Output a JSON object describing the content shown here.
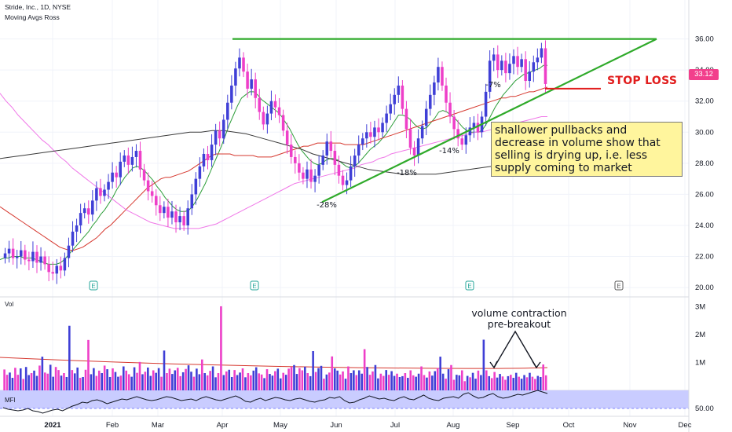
{
  "header": {
    "symbol_line": "Stride, Inc., 1D, NYSE",
    "indicator_line": "Moving Avgs Ross"
  },
  "chart_data": [
    {
      "type": "candlestick",
      "panel": "price",
      "ylim": [
        19.5,
        37.8
      ],
      "y_ticks": [
        "36.00",
        "34.00",
        "32.00",
        "30.00",
        "28.00",
        "26.00",
        "24.00",
        "22.00",
        "20.00"
      ],
      "x_ticks": [
        "2021",
        "Feb",
        "Mar",
        "Apr",
        "May",
        "Jun",
        "Jul",
        "Aug",
        "Sep",
        "Oct",
        "Nov",
        "Dec"
      ],
      "last_price": "33.12",
      "colors": {
        "up": "#3f3fd6",
        "down": "#ee3fc8"
      },
      "closes": [
        22.2,
        22.5,
        21.9,
        22.0,
        22.4,
        21.8,
        21.7,
        22.3,
        21.6,
        22.0,
        21.5,
        21.0,
        20.9,
        21.4,
        21.1,
        21.9,
        22.7,
        23.6,
        24.0,
        24.8,
        25.1,
        24.7,
        25.6,
        26.4,
        25.9,
        26.3,
        26.8,
        27.4,
        27.1,
        28.1,
        28.5,
        27.9,
        28.4,
        28.8,
        27.6,
        26.9,
        26.2,
        25.9,
        25.3,
        24.8,
        25.2,
        24.5,
        24.9,
        24.2,
        24.6,
        24.0,
        25.1,
        26.0,
        27.0,
        27.8,
        28.6,
        28.2,
        29.2,
        30.1,
        29.6,
        30.8,
        31.9,
        33.0,
        34.1,
        34.8,
        33.9,
        32.8,
        33.4,
        32.2,
        31.3,
        30.5,
        31.2,
        32.0,
        31.6,
        31.1,
        30.1,
        29.2,
        28.4,
        28.0,
        27.4,
        27.0,
        27.6,
        26.8,
        27.2,
        27.9,
        28.5,
        29.4,
        28.8,
        27.9,
        27.2,
        26.6,
        26.9,
        27.8,
        28.5,
        29.2,
        29.6,
        30.0,
        29.7,
        30.3,
        30.0,
        30.6,
        31.2,
        31.8,
        32.4,
        33.0,
        31.5,
        30.2,
        29.0,
        28.5,
        29.6,
        30.4,
        31.5,
        32.4,
        33.2,
        34.2,
        33.0,
        31.9,
        31.0,
        30.2,
        29.6,
        29.2,
        29.8,
        30.3,
        30.6,
        30.0,
        31.0,
        32.6,
        34.6,
        35.0,
        34.0,
        34.6,
        33.8,
        34.4,
        34.9,
        34.2,
        34.7,
        33.3,
        33.9,
        34.5,
        34.8,
        35.4,
        33.1
      ],
      "series": [
        {
          "name": "",
          "color": "#2e9e3a",
          "values": [
            21.8,
            21.9,
            21.9,
            22.0,
            22.0,
            22.0,
            21.9,
            21.9,
            21.9,
            21.8,
            21.7,
            21.6,
            21.5,
            21.5,
            21.5,
            21.6,
            21.8,
            22.1,
            22.4,
            22.7,
            23.0,
            23.3,
            23.6,
            24.0,
            24.3,
            24.7,
            25.0,
            25.4,
            25.8,
            26.3,
            26.7,
            27.1,
            27.4,
            27.7,
            27.8,
            27.7,
            27.5,
            27.2,
            26.9,
            26.5,
            26.2,
            25.8,
            25.5,
            25.2,
            25.0,
            24.9,
            24.9,
            25.0,
            25.3,
            25.7,
            26.2,
            26.7,
            27.3,
            27.9,
            28.5,
            29.1,
            29.8,
            30.5,
            31.1,
            31.7,
            32.2,
            32.4,
            32.6,
            32.6,
            32.4,
            32.1,
            31.9,
            31.7,
            31.5,
            31.3,
            31.0,
            30.6,
            30.2,
            29.7,
            29.2,
            28.8,
            28.5,
            28.2,
            28.0,
            27.9,
            28.0,
            28.2,
            28.3,
            28.3,
            28.2,
            28.0,
            27.8,
            27.7,
            27.8,
            28.0,
            28.3,
            28.6,
            28.9,
            29.1,
            29.3,
            29.6,
            29.9,
            30.3,
            30.7,
            31.1,
            31.1,
            31.0,
            30.8,
            30.5,
            30.3,
            30.2,
            30.3,
            30.6,
            30.9,
            31.3,
            31.4,
            31.3,
            31.1,
            30.9,
            30.6,
            30.3,
            30.1,
            30.0,
            30.0,
            30.0,
            30.2,
            30.6,
            31.1,
            31.6,
            32.0,
            32.4,
            32.7,
            33.0,
            33.3,
            33.5,
            33.7,
            33.8,
            33.9,
            34.0,
            34.1,
            34.3,
            34.3
          ]
        },
        {
          "name": "",
          "color": "#d6382f",
          "values": [
            25.2,
            25.0,
            24.8,
            24.6,
            24.4,
            24.2,
            24.0,
            23.8,
            23.6,
            23.4,
            23.2,
            23.0,
            22.8,
            22.6,
            22.5,
            22.4,
            22.4,
            22.5,
            22.6,
            22.8,
            23.0,
            23.2,
            23.5,
            23.8,
            24.0,
            24.3,
            24.6,
            24.9,
            25.2,
            25.5,
            25.8,
            26.1,
            26.4,
            26.6,
            26.8,
            27.0,
            27.1,
            27.1,
            27.2,
            27.3,
            27.4,
            27.5,
            27.7,
            27.9,
            28.1,
            28.3,
            28.5,
            28.6,
            28.6,
            28.6,
            28.6,
            28.5,
            28.5,
            28.5,
            28.5,
            28.5,
            28.4,
            28.4,
            28.4,
            28.4,
            28.5,
            28.6,
            28.7,
            28.8,
            28.9,
            29.0,
            29.1,
            29.1,
            29.2,
            29.3,
            29.3,
            29.3,
            29.3,
            29.3,
            29.3,
            29.2,
            29.2,
            29.2,
            29.2,
            29.2,
            29.3,
            29.4,
            29.5,
            29.6,
            29.7,
            29.8,
            29.9,
            30.0,
            30.1,
            30.2,
            30.3,
            30.4,
            30.5,
            30.6,
            30.7,
            30.8,
            30.9,
            31.0,
            31.1,
            31.2,
            31.3,
            31.4,
            31.5,
            31.6,
            31.7,
            31.8,
            31.9,
            32.0,
            32.1,
            32.2,
            32.2,
            32.3,
            32.3,
            32.4,
            32.5,
            32.6,
            32.6,
            32.7,
            32.8,
            32.9
          ]
        },
        {
          "name": "",
          "color": "#f078e8",
          "values": [
            32.5,
            32.0,
            31.6,
            31.1,
            30.7,
            30.3,
            29.9,
            29.5,
            29.2,
            28.8,
            28.4,
            28.1,
            27.7,
            27.4,
            27.1,
            26.8,
            26.5,
            26.2,
            25.9,
            25.6,
            25.3,
            25.0,
            24.8,
            24.6,
            24.4,
            24.2,
            24.1,
            24.0,
            23.9,
            23.8,
            23.8,
            23.8,
            23.8,
            23.8,
            23.9,
            24.0,
            24.1,
            24.3,
            24.5,
            24.7,
            24.9,
            25.1,
            25.3,
            25.5,
            25.7,
            25.9,
            26.1,
            26.3,
            26.5,
            26.7,
            26.8,
            26.9,
            27.0,
            27.1,
            27.2,
            27.3,
            27.4,
            27.5,
            27.6,
            27.7,
            27.9,
            28.0,
            28.1,
            28.3,
            28.4,
            28.6,
            28.7,
            28.8,
            28.9,
            29.0,
            29.1,
            29.2,
            29.3,
            29.4,
            29.5,
            29.6,
            29.7,
            29.8,
            29.9,
            30.0,
            30.0,
            30.1,
            30.2,
            30.3,
            30.4,
            30.5,
            30.6,
            30.7,
            30.8,
            30.9,
            31.0,
            31.0
          ]
        },
        {
          "name": "",
          "color": "#3a3a3a",
          "values": [
            28.3,
            28.4,
            28.5,
            28.6,
            28.7,
            28.8,
            28.9,
            29.0,
            29.1,
            29.2,
            29.3,
            29.4,
            29.5,
            29.6,
            29.7,
            29.8,
            29.9,
            30.0,
            30.0,
            30.1,
            30.1,
            30.0,
            29.9,
            29.7,
            29.5,
            29.3,
            29.1,
            28.9,
            28.6,
            28.4,
            28.2,
            28.0,
            27.8,
            27.6,
            27.5,
            27.4,
            27.3,
            27.3,
            27.3,
            27.3,
            27.4,
            27.5,
            27.6,
            27.7,
            27.8,
            27.9,
            28.0,
            28.1,
            28.3,
            28.5
          ]
        }
      ]
    },
    {
      "type": "bar",
      "panel": "volume",
      "ylim": [
        0,
        3.3
      ],
      "y_ticks": [
        "3M",
        "2M",
        "1M"
      ],
      "unit": "M",
      "values": [
        0.75,
        0.56,
        0.64,
        0.45,
        0.81,
        0.56,
        0.79,
        0.41,
        0.84,
        0.55,
        0.62,
        0.71,
        0.52,
        0.89,
        1.21,
        0.64,
        0.6,
        0.92,
        0.49,
        0.84,
        0.73,
        0.53,
        0.62,
        0.48,
        2.32,
        0.73,
        0.61,
        0.82,
        0.45,
        0.48,
        0.74,
        1.81,
        0.58,
        0.8,
        0.52,
        0.71,
        0.62,
        0.89,
        0.76,
        0.48,
        0.79,
        0.66,
        0.49,
        0.53,
        0.86,
        0.71,
        0.58,
        0.49,
        0.83,
        0.63,
        1.02,
        0.58,
        0.67,
        0.82,
        0.52,
        0.72,
        0.63,
        0.8,
        0.49,
        1.43,
        0.62,
        0.78,
        0.59,
        0.72,
        0.81,
        0.51,
        0.65,
        0.77,
        0.9,
        0.67,
        0.49,
        0.78,
        0.58,
        1.11,
        0.62,
        0.54,
        0.7,
        0.86,
        0.47,
        0.62,
        3.02,
        0.55,
        0.68,
        0.74,
        0.48,
        0.73,
        0.55,
        0.64,
        0.79,
        0.47,
        0.62,
        0.54,
        0.71,
        0.83,
        0.61,
        0.57,
        0.44,
        0.76,
        0.59,
        0.53,
        0.69,
        0.78,
        0.43,
        0.63,
        0.56,
        0.78,
        0.84,
        0.91,
        0.59,
        0.8,
        0.72,
        0.85,
        0.62,
        0.51,
        1.41,
        0.66,
        0.8,
        0.88,
        0.42,
        0.57,
        0.64,
        1.22,
        0.79,
        0.71,
        0.57,
        0.68,
        0.42,
        0.86,
        0.62,
        0.72,
        0.55,
        0.72,
        0.6,
        1.48,
        0.84,
        0.56,
        0.68,
        0.91,
        0.43,
        0.6,
        0.52,
        0.73,
        0.56,
        0.69,
        0.52,
        0.6,
        0.48,
        0.51,
        0.62,
        0.45,
        0.72,
        0.54,
        0.49,
        0.6,
        0.86,
        0.55,
        0.46,
        0.68,
        0.53,
        0.69,
        0.8,
        1.21,
        0.6,
        0.42,
        0.76,
        0.91,
        0.38,
        0.56,
        0.54,
        0.72,
        0.33,
        0.52,
        0.47,
        0.63,
        0.42,
        0.71,
        0.55,
        1.82,
        0.72,
        0.51,
        0.44,
        0.66,
        0.46,
        0.59,
        0.5,
        0.38,
        0.51,
        0.56,
        0.45,
        0.63,
        0.49,
        0.42,
        0.55,
        0.47,
        0.63,
        0.49,
        0.41,
        0.52,
        0.48,
        0.93,
        0.54
      ]
    },
    {
      "type": "line",
      "panel": "MFI",
      "label": "MFI",
      "y_ticks": [
        "50.00"
      ],
      "values": [
        48,
        46,
        45,
        44,
        45,
        47,
        44,
        43,
        41,
        43,
        45,
        46,
        44,
        47,
        50,
        52,
        55,
        54,
        57,
        58,
        56,
        53,
        55,
        57,
        59,
        58,
        60,
        62,
        60,
        58,
        57,
        58,
        60,
        62,
        61,
        59,
        57,
        58,
        59,
        57,
        60,
        62,
        60,
        58,
        57,
        59,
        61,
        63,
        60,
        56,
        55,
        58,
        60,
        57,
        59,
        61,
        60,
        58,
        57,
        59,
        60,
        58,
        56,
        55,
        57,
        58,
        61,
        60,
        62,
        57,
        54,
        55,
        58,
        60,
        63,
        61,
        59,
        60,
        58,
        57,
        60,
        62,
        59,
        58,
        61,
        64,
        60,
        58,
        57,
        60,
        61,
        62,
        60,
        65,
        67,
        63,
        60,
        61,
        64,
        66,
        62,
        60,
        61,
        63,
        65,
        64,
        66,
        68,
        70,
        68,
        66
      ]
    }
  ],
  "annotations": {
    "pullbacks": [
      "-28%",
      "-18%",
      "-14%",
      "-7%"
    ],
    "stop_loss": "STOP LOSS",
    "note": "shallower pullbacks and decrease in volume show that selling is drying up, i.e. less supply coming to market",
    "volume_note": "volume contraction pre-breakout",
    "volume_label": "Vol",
    "earnings_label": "E"
  }
}
